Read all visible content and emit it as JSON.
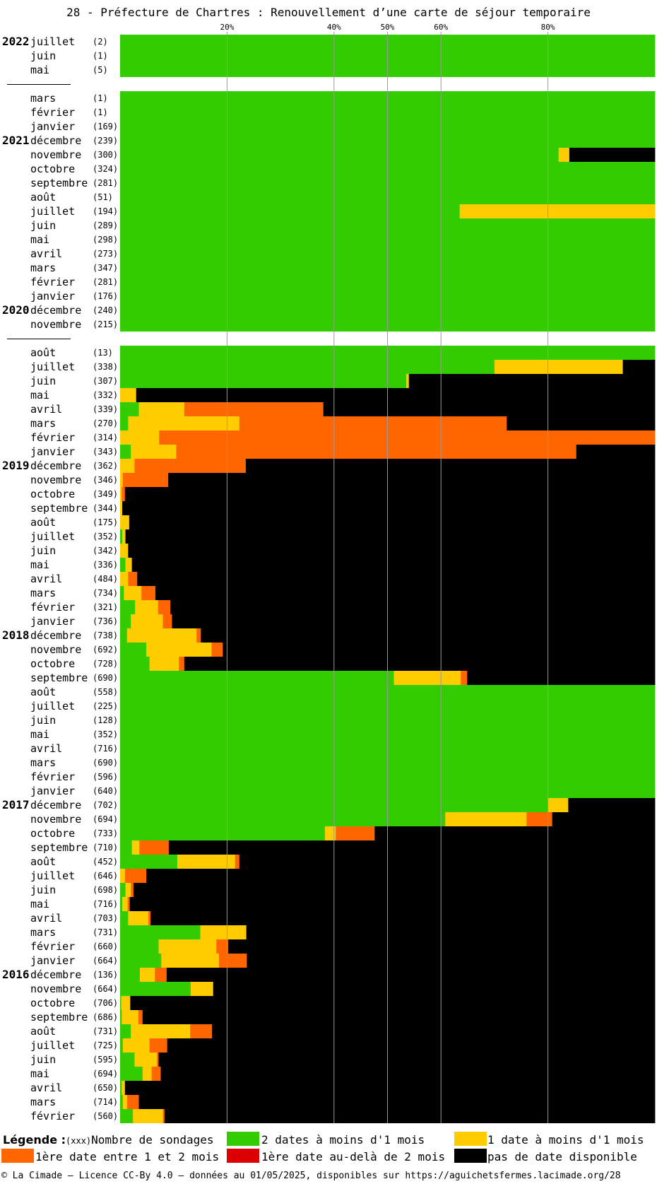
{
  "title": "28 - Préfecture de Chartres : Renouvellement d’une carte de séjour temporaire",
  "chart_data": {
    "type": "bar",
    "orientation": "horizontal-stacked-percent",
    "x_ticks": [
      "20%",
      "40%",
      "50%",
      "60%",
      "80%"
    ],
    "x_tick_values": [
      20,
      40,
      50,
      60,
      80
    ],
    "xlim": [
      0,
      100
    ],
    "series": [
      {
        "key": "g",
        "name": "2 dates à moins d'1 mois",
        "color": "#33cc00"
      },
      {
        "key": "y",
        "name": "1 date à moins d'1 mois",
        "color": "#ffcc00"
      },
      {
        "key": "o",
        "name": "1ère date entre 1 et 2 mois",
        "color": "#ff6600"
      },
      {
        "key": "r",
        "name": "1ère date au-delà de 2 mois",
        "color": "#dd0000"
      },
      {
        "key": "k",
        "name": "pas de date disponible",
        "color": "#000000"
      }
    ],
    "rows": [
      {
        "year": "2022",
        "month": "juillet",
        "count": "(2)",
        "g": 100,
        "y": 0,
        "o": 0,
        "r": 0,
        "k": 0
      },
      {
        "year": "",
        "month": "juin",
        "count": "(1)",
        "g": 100,
        "y": 0,
        "o": 0,
        "r": 0,
        "k": 0
      },
      {
        "year": "",
        "month": "mai",
        "count": "(5)",
        "g": 100,
        "y": 0,
        "o": 0,
        "r": 0,
        "k": 0
      },
      {
        "gap": true
      },
      {
        "year": "",
        "month": "mars",
        "count": "(1)",
        "g": 100,
        "y": 0,
        "o": 0,
        "r": 0,
        "k": 0
      },
      {
        "year": "",
        "month": "février",
        "count": "(1)",
        "g": 100,
        "y": 0,
        "o": 0,
        "r": 0,
        "k": 0
      },
      {
        "year": "",
        "month": "janvier",
        "count": "(169)",
        "g": 100,
        "y": 0,
        "o": 0,
        "r": 0,
        "k": 0
      },
      {
        "year": "2021",
        "month": "décembre",
        "count": "(239)",
        "g": 100,
        "y": 0,
        "o": 0,
        "r": 0,
        "k": 0
      },
      {
        "year": "",
        "month": "novembre",
        "count": "(300)",
        "g": 82,
        "y": 2,
        "o": 0,
        "r": 0,
        "k": 16
      },
      {
        "year": "",
        "month": "octobre",
        "count": "(324)",
        "g": 100,
        "y": 0,
        "o": 0,
        "r": 0,
        "k": 0
      },
      {
        "year": "",
        "month": "septembre",
        "count": "(281)",
        "g": 100,
        "y": 0,
        "o": 0,
        "r": 0,
        "k": 0
      },
      {
        "year": "",
        "month": "août",
        "count": "(51)",
        "g": 100,
        "y": 0,
        "o": 0,
        "r": 0,
        "k": 0
      },
      {
        "year": "",
        "month": "juillet",
        "count": "(194)",
        "g": 63.5,
        "y": 36.5,
        "o": 0,
        "r": 0,
        "k": 0
      },
      {
        "year": "",
        "month": "juin",
        "count": "(289)",
        "g": 100,
        "y": 0,
        "o": 0,
        "r": 0,
        "k": 0
      },
      {
        "year": "",
        "month": "mai",
        "count": "(298)",
        "g": 100,
        "y": 0,
        "o": 0,
        "r": 0,
        "k": 0
      },
      {
        "year": "",
        "month": "avril",
        "count": "(273)",
        "g": 100,
        "y": 0,
        "o": 0,
        "r": 0,
        "k": 0
      },
      {
        "year": "",
        "month": "mars",
        "count": "(347)",
        "g": 100,
        "y": 0,
        "o": 0,
        "r": 0,
        "k": 0
      },
      {
        "year": "",
        "month": "février",
        "count": "(281)",
        "g": 100,
        "y": 0,
        "o": 0,
        "r": 0,
        "k": 0
      },
      {
        "year": "",
        "month": "janvier",
        "count": "(176)",
        "g": 100,
        "y": 0,
        "o": 0,
        "r": 0,
        "k": 0
      },
      {
        "year": "2020",
        "month": "décembre",
        "count": "(240)",
        "g": 100,
        "y": 0,
        "o": 0,
        "r": 0,
        "k": 0
      },
      {
        "year": "",
        "month": "novembre",
        "count": "(215)",
        "g": 100,
        "y": 0,
        "o": 0,
        "r": 0,
        "k": 0
      },
      {
        "gap": true
      },
      {
        "year": "",
        "month": "août",
        "count": "(13)",
        "g": 100,
        "y": 0,
        "o": 0,
        "r": 0,
        "k": 0
      },
      {
        "year": "",
        "month": "juillet",
        "count": "(338)",
        "g": 70,
        "y": 24,
        "o": 0,
        "r": 0,
        "k": 6
      },
      {
        "year": "",
        "month": "juin",
        "count": "(307)",
        "g": 53.5,
        "y": 0.5,
        "o": 0,
        "r": 0,
        "k": 46
      },
      {
        "year": "",
        "month": "mai",
        "count": "(332)",
        "g": 0,
        "y": 3,
        "o": 0,
        "r": 0,
        "k": 97
      },
      {
        "year": "",
        "month": "avril",
        "count": "(339)",
        "g": 3.5,
        "y": 8.5,
        "o": 26,
        "r": 0,
        "k": 62
      },
      {
        "year": "",
        "month": "mars",
        "count": "(270)",
        "g": 1.5,
        "y": 20.8,
        "o": 50,
        "r": 0,
        "k": 27.7
      },
      {
        "year": "",
        "month": "février",
        "count": "(314)",
        "g": 0,
        "y": 7.3,
        "o": 92.7,
        "r": 0,
        "k": 0
      },
      {
        "year": "",
        "month": "janvier",
        "count": "(343)",
        "g": 2,
        "y": 8.5,
        "o": 74.8,
        "r": 0,
        "k": 14.7
      },
      {
        "year": "2019",
        "month": "décembre",
        "count": "(362)",
        "g": 0,
        "y": 2.7,
        "o": 20.8,
        "r": 0,
        "k": 76.5
      },
      {
        "year": "",
        "month": "novembre",
        "count": "(346)",
        "g": 0,
        "y": 0.5,
        "o": 8.5,
        "r": 0,
        "k": 91
      },
      {
        "year": "",
        "month": "octobre",
        "count": "(349)",
        "g": 0,
        "y": 0.3,
        "o": 0.6,
        "r": 0,
        "k": 99.1
      },
      {
        "year": "",
        "month": "septembre",
        "count": "(344)",
        "g": 0,
        "y": 0.4,
        "o": 0,
        "r": 0,
        "k": 99.6
      },
      {
        "year": "",
        "month": "août",
        "count": "(175)",
        "g": 0,
        "y": 1.7,
        "o": 0,
        "r": 0,
        "k": 98.3
      },
      {
        "year": "",
        "month": "juillet",
        "count": "(352)",
        "g": 0.4,
        "y": 0.6,
        "o": 0,
        "r": 0,
        "k": 99
      },
      {
        "year": "",
        "month": "juin",
        "count": "(342)",
        "g": 0,
        "y": 1.5,
        "o": 0,
        "r": 0,
        "k": 98.5
      },
      {
        "year": "",
        "month": "mai",
        "count": "(336)",
        "g": 1,
        "y": 1.2,
        "o": 0,
        "r": 0,
        "k": 97.8
      },
      {
        "year": "",
        "month": "avril",
        "count": "(484)",
        "g": 0,
        "y": 1.5,
        "o": 1.7,
        "r": 0,
        "k": 96.8
      },
      {
        "year": "",
        "month": "mars",
        "count": "(734)",
        "g": 0.7,
        "y": 3.3,
        "o": 2.6,
        "r": 0,
        "k": 93.4
      },
      {
        "year": "",
        "month": "février",
        "count": "(321)",
        "g": 2.8,
        "y": 4.3,
        "o": 2.3,
        "r": 0,
        "k": 90.6
      },
      {
        "year": "",
        "month": "janvier",
        "count": "(736)",
        "g": 2,
        "y": 6,
        "o": 1.7,
        "r": 0,
        "k": 90.3
      },
      {
        "year": "2018",
        "month": "décembre",
        "count": "(738)",
        "g": 1.3,
        "y": 13,
        "o": 0.8,
        "r": 0,
        "k": 84.9
      },
      {
        "year": "",
        "month": "novembre",
        "count": "(692)",
        "g": 4.9,
        "y": 12.2,
        "o": 2.1,
        "r": 0,
        "k": 80.8
      },
      {
        "year": "",
        "month": "octobre",
        "count": "(728)",
        "g": 5.5,
        "y": 5.5,
        "o": 1,
        "r": 0,
        "k": 88
      },
      {
        "year": "",
        "month": "septembre",
        "count": "(690)",
        "g": 51.2,
        "y": 12.5,
        "o": 1.2,
        "r": 0,
        "k": 35.1
      },
      {
        "year": "",
        "month": "août",
        "count": "(558)",
        "g": 100,
        "y": 0,
        "o": 0,
        "r": 0,
        "k": 0
      },
      {
        "year": "",
        "month": "juillet",
        "count": "(225)",
        "g": 100,
        "y": 0,
        "o": 0,
        "r": 0,
        "k": 0
      },
      {
        "year": "",
        "month": "juin",
        "count": "(128)",
        "g": 100,
        "y": 0,
        "o": 0,
        "r": 0,
        "k": 0
      },
      {
        "year": "",
        "month": "mai",
        "count": "(352)",
        "g": 100,
        "y": 0,
        "o": 0,
        "r": 0,
        "k": 0
      },
      {
        "year": "",
        "month": "avril",
        "count": "(716)",
        "g": 100,
        "y": 0,
        "o": 0,
        "r": 0,
        "k": 0
      },
      {
        "year": "",
        "month": "mars",
        "count": "(690)",
        "g": 100,
        "y": 0,
        "o": 0,
        "r": 0,
        "k": 0
      },
      {
        "year": "",
        "month": "février",
        "count": "(596)",
        "g": 100,
        "y": 0,
        "o": 0,
        "r": 0,
        "k": 0
      },
      {
        "year": "",
        "month": "janvier",
        "count": "(640)",
        "g": 100,
        "y": 0,
        "o": 0,
        "r": 0,
        "k": 0
      },
      {
        "year": "2017",
        "month": "décembre",
        "count": "(702)",
        "g": 80,
        "y": 3.8,
        "o": 0,
        "r": 0,
        "k": 16.2
      },
      {
        "year": "",
        "month": "novembre",
        "count": "(694)",
        "g": 60.8,
        "y": 15.2,
        "o": 4.8,
        "r": 0,
        "k": 19.2
      },
      {
        "year": "",
        "month": "octobre",
        "count": "(733)",
        "g": 38.3,
        "y": 2,
        "o": 7.3,
        "r": 0,
        "k": 52.4
      },
      {
        "year": "",
        "month": "septembre",
        "count": "(710)",
        "g": 2.2,
        "y": 1.4,
        "o": 5.5,
        "r": 0,
        "k": 90.9
      },
      {
        "year": "",
        "month": "août",
        "count": "(452)",
        "g": 10.7,
        "y": 10.8,
        "o": 0.8,
        "r": 0,
        "k": 77.7
      },
      {
        "year": "",
        "month": "juillet",
        "count": "(646)",
        "g": 0,
        "y": 0.9,
        "o": 4,
        "r": 0,
        "k": 95.1
      },
      {
        "year": "",
        "month": "juin",
        "count": "(698)",
        "g": 1,
        "y": 1,
        "o": 0.5,
        "r": 0,
        "k": 97.5
      },
      {
        "year": "",
        "month": "mai",
        "count": "(716)",
        "g": 0.4,
        "y": 1,
        "o": 0.4,
        "r": 0,
        "k": 98.2
      },
      {
        "year": "",
        "month": "avril",
        "count": "(703)",
        "g": 1.5,
        "y": 3.8,
        "o": 0.4,
        "r": 0,
        "k": 94.3
      },
      {
        "year": "",
        "month": "mars",
        "count": "(731)",
        "g": 15,
        "y": 8.6,
        "o": 0,
        "r": 0,
        "k": 76.4
      },
      {
        "year": "",
        "month": "février",
        "count": "(660)",
        "g": 7.2,
        "y": 10.8,
        "o": 2.2,
        "r": 0,
        "k": 79.8
      },
      {
        "year": "",
        "month": "janvier",
        "count": "(664)",
        "g": 7.7,
        "y": 10.8,
        "o": 5.2,
        "r": 0,
        "k": 76.3
      },
      {
        "year": "2016",
        "month": "décembre",
        "count": "(136)",
        "g": 3.7,
        "y": 2.8,
        "o": 2.2,
        "r": 0,
        "k": 91.3
      },
      {
        "year": "",
        "month": "novembre",
        "count": "(664)",
        "g": 13.2,
        "y": 4.2,
        "o": 0,
        "r": 0,
        "k": 82.6
      },
      {
        "year": "",
        "month": "octobre",
        "count": "(706)",
        "g": 0.2,
        "y": 1.7,
        "o": 0,
        "r": 0,
        "k": 98.1
      },
      {
        "year": "",
        "month": "septembre",
        "count": "(686)",
        "g": 0.3,
        "y": 3.1,
        "o": 0.8,
        "r": 0,
        "k": 95.8
      },
      {
        "year": "",
        "month": "août",
        "count": "(731)",
        "g": 2,
        "y": 11.1,
        "o": 4.1,
        "r": 0,
        "k": 82.8
      },
      {
        "year": "",
        "month": "juillet",
        "count": "(725)",
        "g": 0.5,
        "y": 5,
        "o": 3.3,
        "r": 0,
        "k": 91.2
      },
      {
        "year": "",
        "month": "juin",
        "count": "(595)",
        "g": 2.7,
        "y": 4.2,
        "o": 0.3,
        "r": 0,
        "k": 92.8
      },
      {
        "year": "",
        "month": "mai",
        "count": "(694)",
        "g": 4.2,
        "y": 1.7,
        "o": 1.7,
        "r": 0,
        "k": 92.4
      },
      {
        "year": "",
        "month": "avril",
        "count": "(650)",
        "g": 0.3,
        "y": 0.6,
        "o": 0,
        "r": 0,
        "k": 99.1
      },
      {
        "year": "",
        "month": "mars",
        "count": "(714)",
        "g": 0.5,
        "y": 0.8,
        "o": 2.2,
        "r": 0,
        "k": 96.5
      },
      {
        "year": "",
        "month": "février",
        "count": "(560)",
        "g": 2.4,
        "y": 5.6,
        "o": 0.3,
        "r": 0,
        "k": 91.7
      }
    ]
  },
  "legend": {
    "label": "Légende :",
    "count_hint": "(xxx)",
    "count_text": "Nombre de sondages",
    "g": "2 dates à moins d'1 mois",
    "y": "1 date à moins d'1 mois",
    "o": "1ère date entre 1 et 2 mois",
    "r": "1ère date au-delà de 2 mois",
    "k": "pas de date disponible"
  },
  "footer": "© La Cimade — Licence CC-By 4.0 — données au 01/05/2025, disponibles sur https://aguichetsfermes.lacimade.org/28"
}
